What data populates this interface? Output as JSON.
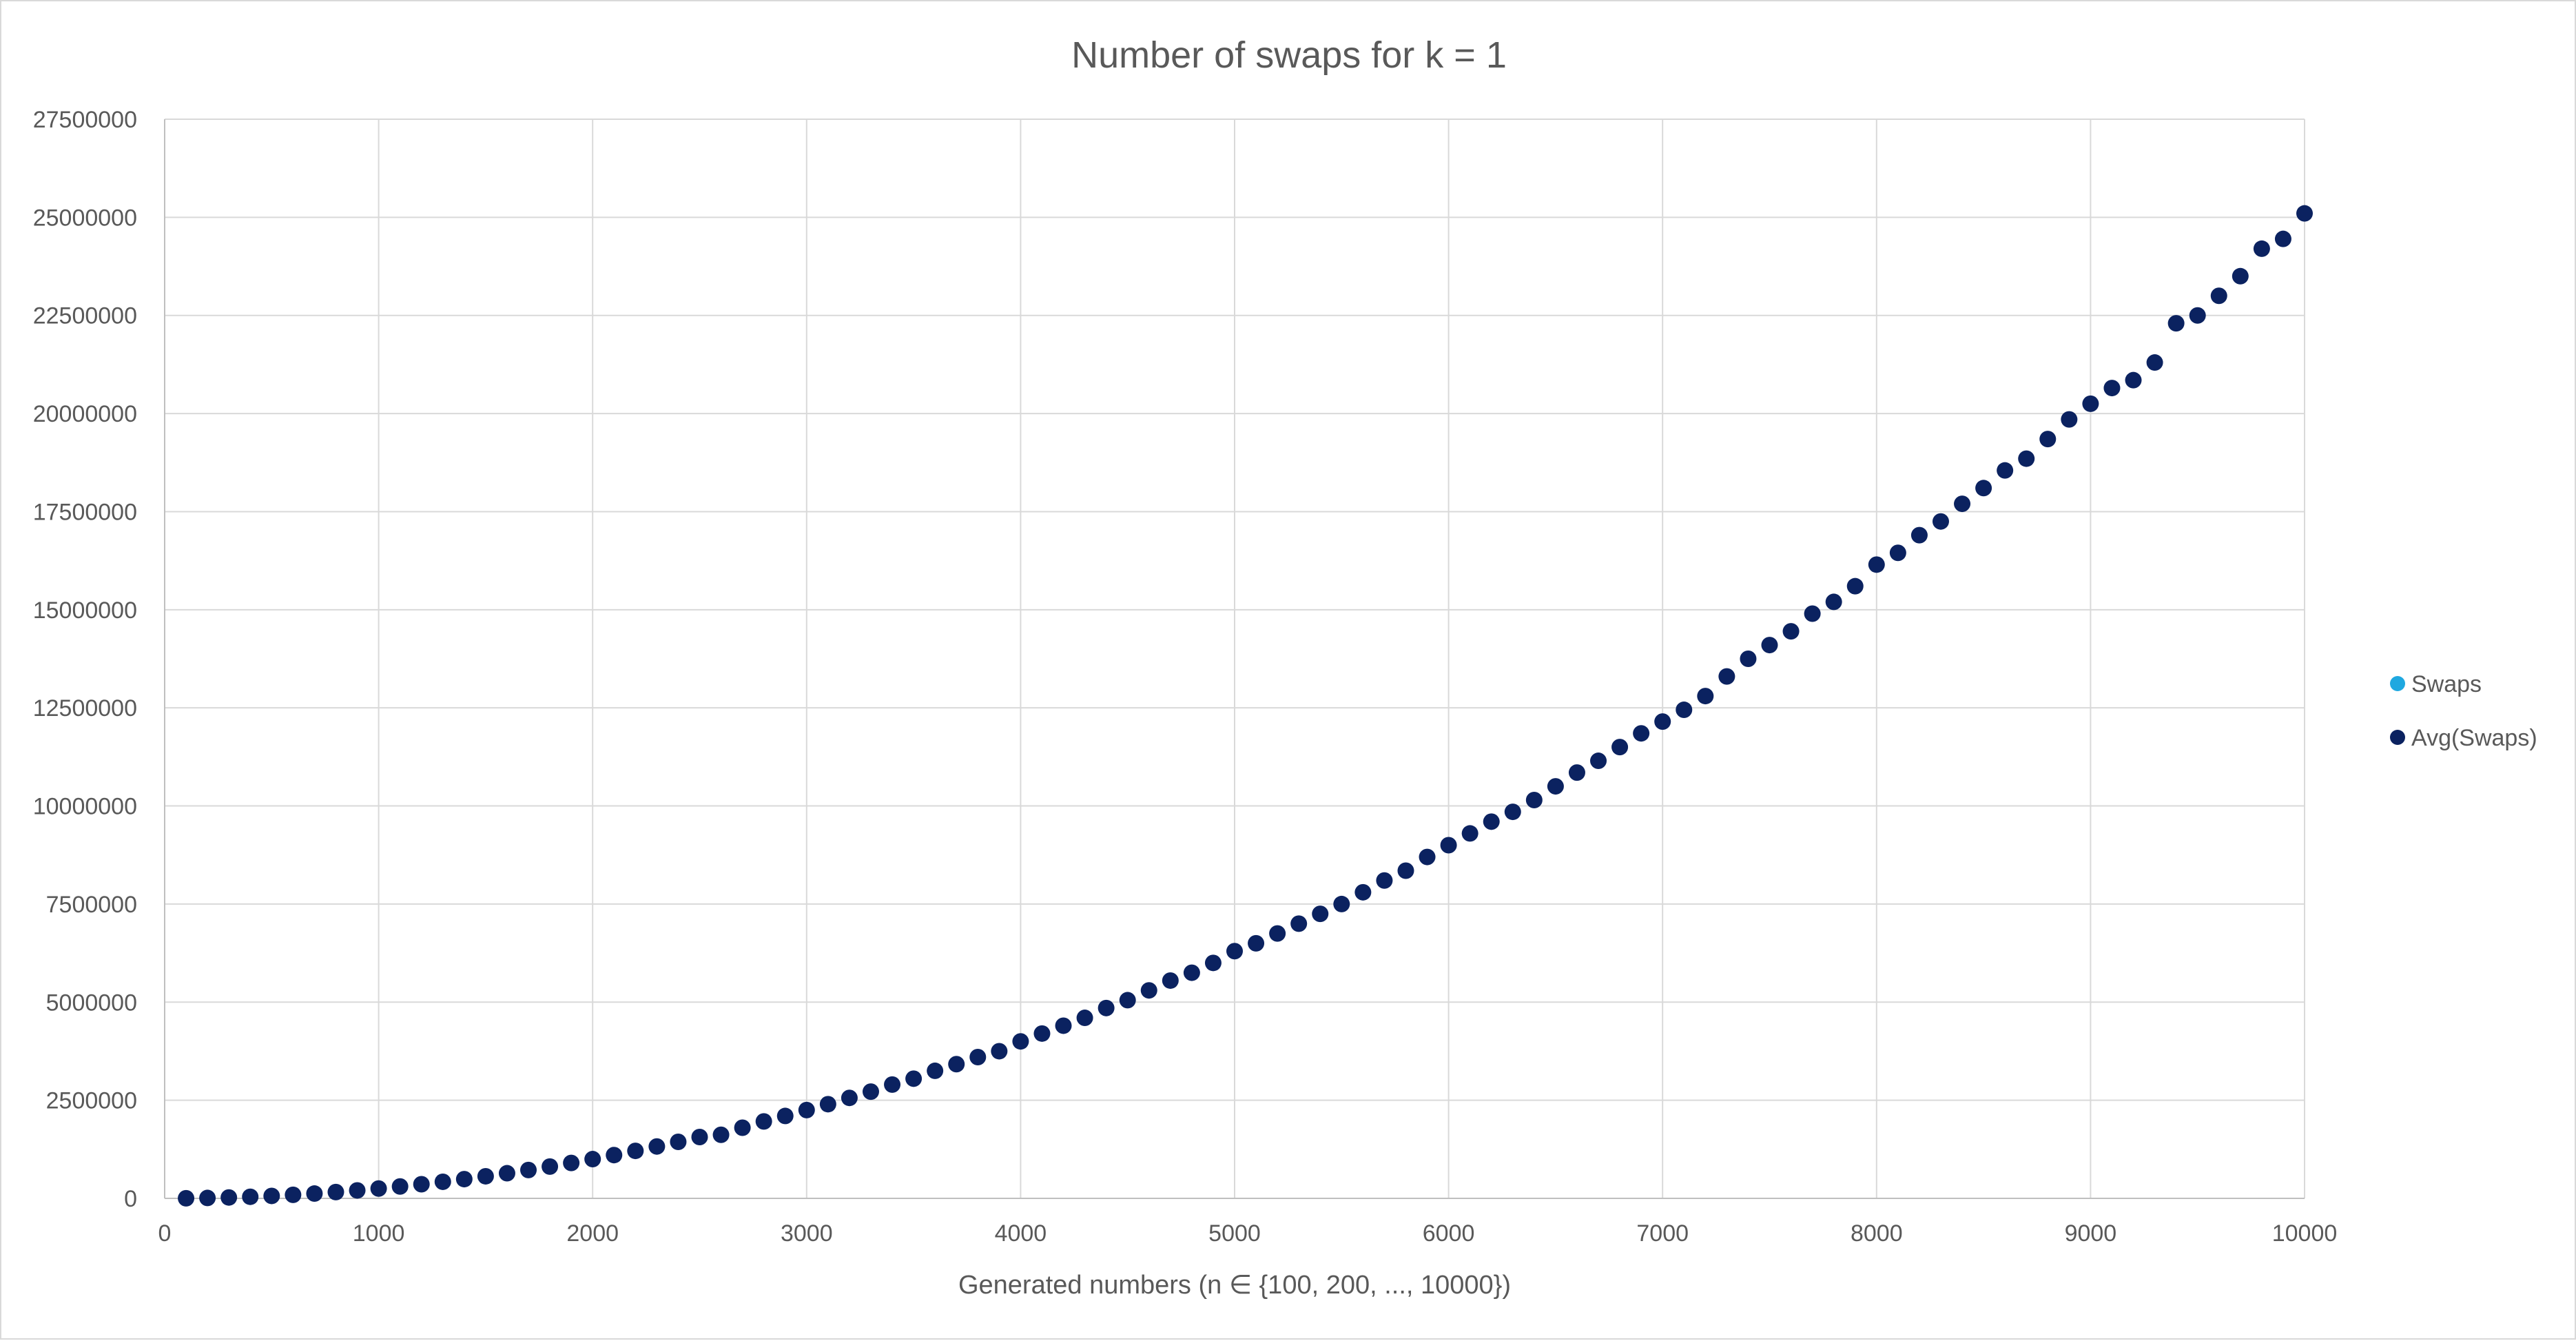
{
  "chart_data": {
    "type": "scatter",
    "title": "Number of swaps for k = 1",
    "xlabel": "Generated numbers (n ∈ {100, 200, ..., 10000})",
    "ylabel": "",
    "xlim": [
      0,
      10000
    ],
    "ylim": [
      0,
      27500000
    ],
    "xticks": [
      0,
      1000,
      2000,
      3000,
      4000,
      5000,
      6000,
      7000,
      8000,
      9000,
      10000
    ],
    "yticks": [
      0,
      2500000,
      5000000,
      7500000,
      10000000,
      12500000,
      15000000,
      17500000,
      20000000,
      22500000,
      25000000,
      27500000
    ],
    "xtick_labels": [
      "0",
      "1000",
      "2000",
      "3000",
      "4000",
      "5000",
      "6000",
      "7000",
      "8000",
      "9000",
      "10000"
    ],
    "ytick_labels": [
      "0",
      "2500000",
      "5000000",
      "7500000",
      "10000000",
      "12500000",
      "15000000",
      "17500000",
      "20000000",
      "22500000",
      "25000000",
      "27500000"
    ],
    "grid": true,
    "legend_position": "right",
    "series": [
      {
        "name": "Swaps",
        "color": "#1fa8e0",
        "x": [],
        "y": []
      },
      {
        "name": "Avg(Swaps)",
        "color": "#0b2260",
        "x": [
          100,
          200,
          300,
          400,
          500,
          600,
          700,
          800,
          900,
          1000,
          1100,
          1200,
          1300,
          1400,
          1500,
          1600,
          1700,
          1800,
          1900,
          2000,
          2100,
          2200,
          2300,
          2400,
          2500,
          2600,
          2700,
          2800,
          2900,
          3000,
          3100,
          3200,
          3300,
          3400,
          3500,
          3600,
          3700,
          3800,
          3900,
          4000,
          4100,
          4200,
          4300,
          4400,
          4500,
          4600,
          4700,
          4800,
          4900,
          5000,
          5100,
          5200,
          5300,
          5400,
          5500,
          5600,
          5700,
          5800,
          5900,
          6000,
          6100,
          6200,
          6300,
          6400,
          6500,
          6600,
          6700,
          6800,
          6900,
          7000,
          7100,
          7200,
          7300,
          7400,
          7500,
          7600,
          7700,
          7800,
          7900,
          8000,
          8100,
          8200,
          8300,
          8400,
          8500,
          8600,
          8700,
          8800,
          8900,
          9000,
          9100,
          9200,
          9300,
          9400,
          9500,
          9600,
          9700,
          9800,
          9900,
          10000
        ],
        "y": [
          2500,
          10000,
          22500,
          40000,
          62500,
          90000,
          122500,
          160000,
          202500,
          250000,
          302500,
          360000,
          422500,
          490000,
          562500,
          640000,
          722500,
          810000,
          902500,
          1000000,
          1102500,
          1210000,
          1322500,
          1440000,
          1562500,
          1620000,
          1800000,
          1960000,
          2100000,
          2250000,
          2400000,
          2560000,
          2720000,
          2900000,
          3050000,
          3250000,
          3420000,
          3600000,
          3750000,
          4000000,
          4200000,
          4400000,
          4600000,
          4850000,
          5050000,
          5300000,
          5550000,
          5750000,
          6000000,
          6300000,
          6500000,
          6750000,
          7000000,
          7250000,
          7500000,
          7800000,
          8100000,
          8350000,
          8700000,
          9000000,
          9300000,
          9600000,
          9850000,
          10150000,
          10500000,
          10850000,
          11150000,
          11500000,
          11850000,
          12150000,
          12450000,
          12800000,
          13300000,
          13750000,
          14100000,
          14450000,
          14900000,
          15200000,
          15600000,
          16150000,
          16450000,
          16900000,
          17250000,
          17700000,
          18100000,
          18550000,
          18850000,
          19350000,
          19850000,
          20250000,
          20650000,
          20850000,
          21300000,
          22300000,
          22500000,
          23000000,
          23500000,
          24200000,
          24450000,
          25100000
        ]
      }
    ]
  }
}
